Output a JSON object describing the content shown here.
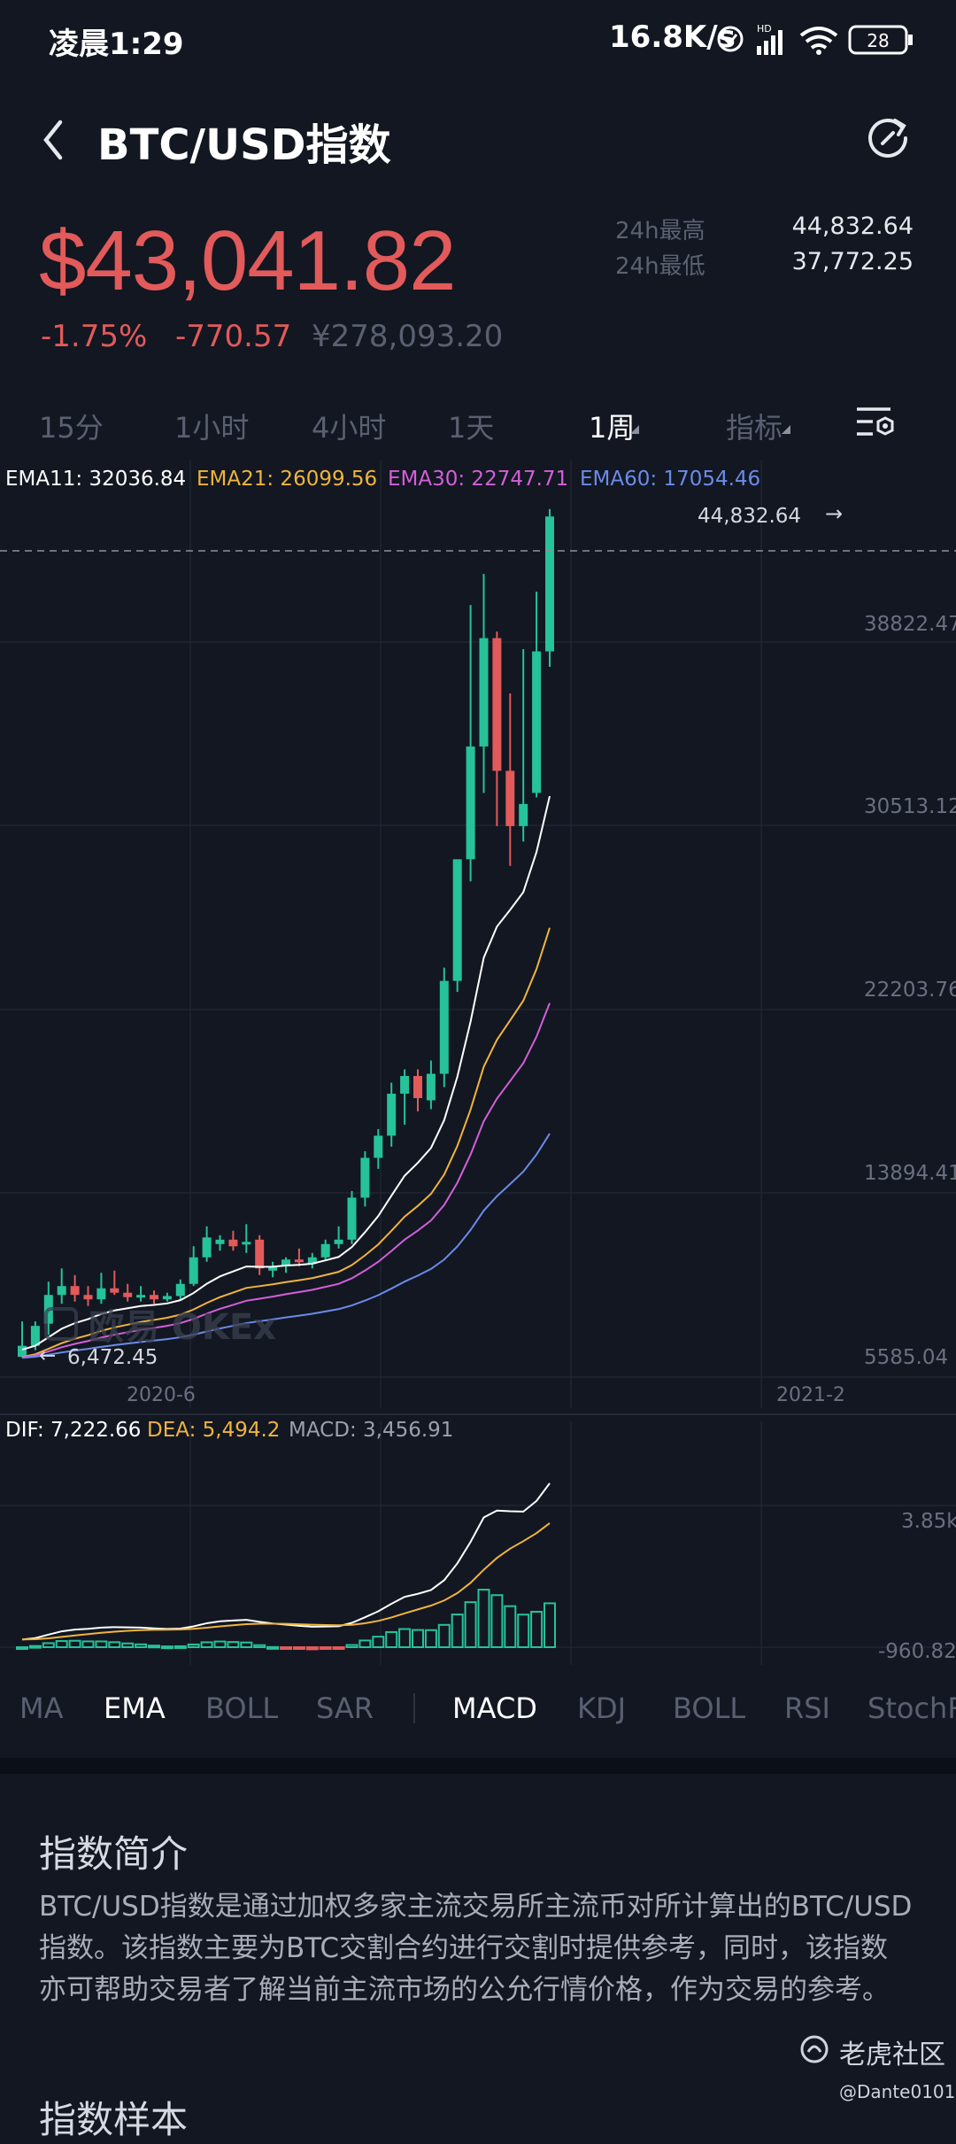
{
  "status_bar": {
    "time": "凌晨1:29",
    "network_speed": "16.8K/s",
    "battery": "28"
  },
  "header": {
    "title": "BTC/USD指数"
  },
  "price": {
    "last": "$43,041.82",
    "change_pct": "-1.75%",
    "change_abs": "-770.57",
    "cny": "¥278,093.20",
    "high_label": "24h最高",
    "high_value": "44,832.64",
    "low_label": "24h最低",
    "low_value": "37,772.25"
  },
  "timeframes": [
    "15分",
    "1小时",
    "4小时",
    "1天",
    "1周",
    "指标"
  ],
  "timeframe_active": "1周",
  "ema_legend": [
    {
      "text": "EMA11: 32036.84",
      "color": "#ffffff"
    },
    {
      "text": "EMA21: 26099.56",
      "color": "#f0b43c"
    },
    {
      "text": "EMA30: 22747.71",
      "color": "#d35fd8"
    },
    {
      "text": "EMA60: 17054.46",
      "color": "#6b8be8"
    }
  ],
  "macd_legend": [
    {
      "text": "DIF: 7,222.66",
      "color": "#ffffff"
    },
    {
      "text": "DEA: 5,494.2",
      "color": "#f0b43c"
    },
    {
      "text": "MACD: 3,456.91",
      "color": "#9aa0ad"
    }
  ],
  "chart_data": {
    "type": "candlestick",
    "y_axis_labels": [
      "38822.47",
      "30513.12",
      "22203.76",
      "13894.41",
      "5585.04"
    ],
    "x_axis_labels": [
      "2020-6",
      "2021-2"
    ],
    "high_marker": "44,832.64",
    "low_marker": "6,472.45",
    "watermark": "欧易 OKEx",
    "macd_axis_labels": [
      "3.85k",
      "-960.82"
    ],
    "colors": {
      "up": "#26c29a",
      "down": "#e25a5a",
      "ema11": "#ffffff",
      "ema21": "#f0b43c",
      "ema30": "#d35fd8",
      "ema60": "#6b8be8"
    }
  },
  "indicator_tabs": [
    "MA",
    "EMA",
    "BOLL",
    "SAR",
    "MACD",
    "KDJ",
    "BOLL",
    "RSI",
    "StochRSI"
  ],
  "indicator_active": [
    "EMA",
    "MACD"
  ],
  "intro": {
    "title": "指数简介",
    "body": "BTC/USD指数是通过加权多家主流交易所主流币对所计算出的BTC/USD指数。该指数主要为BTC交割合约进行交割时提供参考，同时，该指数亦可帮助交易者了解当前主流市场的公允行情价格，作为交易的参考。"
  },
  "next_section_title": "指数样本",
  "watermark": {
    "text": "老虎社区",
    "user": "@Dante0101"
  }
}
